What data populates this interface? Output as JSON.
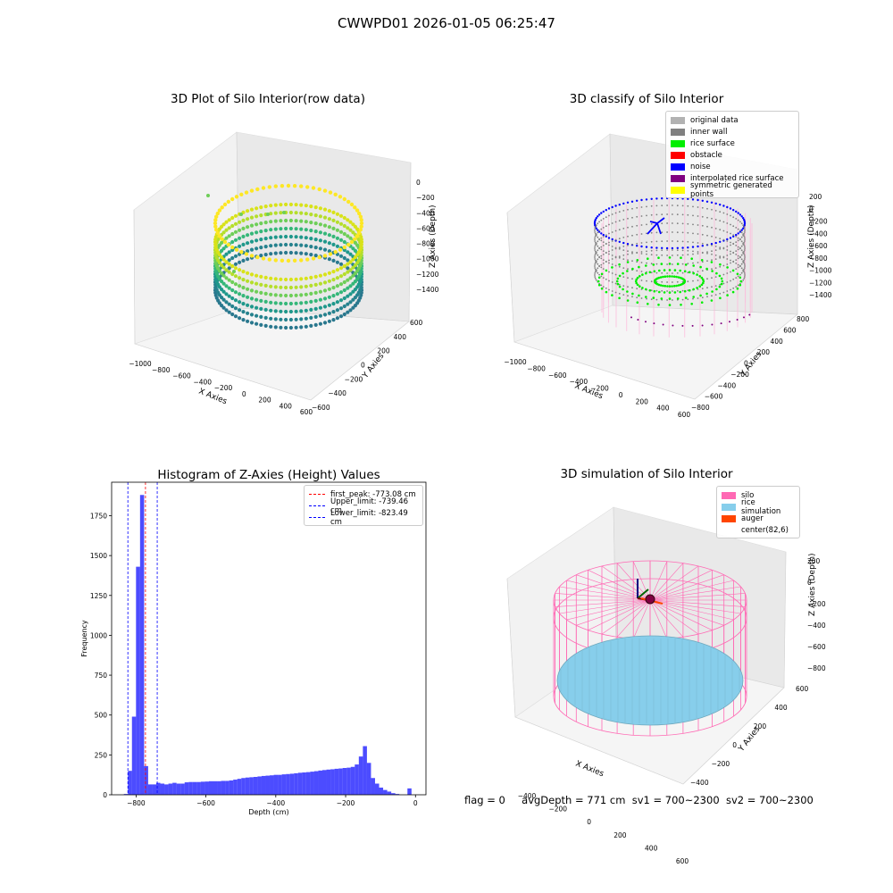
{
  "figure": {
    "suptitle": "CWWPD01 2026-01-05 06:25:47"
  },
  "colors": {
    "original_data": "#b2b2b2",
    "inner_wall": "#808080",
    "rice_surface": "#00ee00",
    "obstacle": "#ff0000",
    "noise": "#0000ff",
    "interpolated_rice_surface": "#800080",
    "symmetric_points": "#ffff00",
    "silo": "#ff69b4",
    "rice_simulation": "#87ceeb",
    "auger": "#ff4500",
    "hist_bar": "#0000ff",
    "first_peak_line": "#ff0000",
    "limit_line": "#0000ff"
  },
  "panels": {
    "raw3d": {
      "title": "3D Plot of Silo Interior(row data)",
      "xlabel": "X Axies",
      "ylabel": "Y Axies",
      "zlabel": "Z Axies (Depth)",
      "xticks": [
        "−1000",
        "−800",
        "−600",
        "−400",
        "−200",
        "0",
        "200",
        "400",
        "600"
      ],
      "yticks": [
        "−600",
        "−400",
        "−200",
        "0",
        "200",
        "400",
        "600"
      ],
      "zticks": [
        "0",
        "−200",
        "−400",
        "−600",
        "−800",
        "−1000",
        "−1200",
        "−1400"
      ]
    },
    "classify3d": {
      "title": "3D classify of Silo Interior",
      "xlabel": "X Axies",
      "ylabel": "Y Axies",
      "zlabel": "Z Axies (Depth)",
      "xticks": [
        "−1000",
        "−800",
        "−600",
        "−400",
        "−200",
        "0",
        "200",
        "400",
        "600"
      ],
      "yticks": [
        "−800",
        "−600",
        "−400",
        "−200",
        "0",
        "200",
        "400",
        "600",
        "800"
      ],
      "zticks": [
        "200",
        "0",
        "−200",
        "−400",
        "−600",
        "−800",
        "−1000",
        "−1200",
        "−1400"
      ],
      "legend": [
        "original data",
        "inner wall",
        "rice surface",
        "obstacle",
        "noise",
        "interpolated rice surface",
        "symmetric generated points"
      ]
    },
    "sim3d": {
      "title": "3D simulation of Silo Interior",
      "xlabel": "X Axies",
      "ylabel": "Y Axies",
      "zlabel": "Z Axies (Depth)",
      "xticks": [
        "−400",
        "−200",
        "0",
        "200",
        "400",
        "600"
      ],
      "yticks": [
        "−400",
        "−200",
        "0",
        "200",
        "400",
        "600"
      ],
      "zticks": [
        "200",
        "0",
        "−200",
        "−400",
        "−600",
        "−800"
      ],
      "legend": [
        "silo",
        "rice simulation",
        "auger",
        "center(82,6)"
      ]
    }
  },
  "status": {
    "flag": "flag = 0",
    "avg_depth": "avgDepth = 771 cm",
    "sv1": "sv1 = 700~2300",
    "sv2": "sv2 = 700~2300"
  },
  "chart_data": [
    {
      "type": "bar",
      "title": "Histogram of Z-Axies (Height) Values",
      "xlabel": "Depth (cm)",
      "ylabel": "Frequency",
      "xlim": [
        -870,
        30
      ],
      "ylim": [
        0,
        1960
      ],
      "xticks": [
        -800,
        -600,
        -400,
        -200,
        0
      ],
      "yticks": [
        0,
        250,
        500,
        750,
        1000,
        1250,
        1500,
        1750
      ],
      "bin_width": 11.6,
      "bin_edges_start": [
        -835,
        -823.4,
        -811.8,
        -800.2,
        -788.6,
        -777,
        -765.4,
        -753.8,
        -742.2,
        -730.6,
        -719,
        -707.4,
        -695.8,
        -684.2,
        -672.6,
        -661,
        -649.4,
        -637.8,
        -626.2,
        -614.6,
        -603,
        -591.4,
        -579.8,
        -568.2,
        -556.6,
        -545,
        -533.4,
        -521.8,
        -510.2,
        -498.6,
        -487,
        -475.4,
        -463.8,
        -452.2,
        -440.6,
        -429,
        -417.4,
        -405.8,
        -394.2,
        -382.6,
        -371,
        -359.4,
        -347.8,
        -336.2,
        -324.6,
        -313,
        -301.4,
        -289.8,
        -278.2,
        -266.6,
        -255,
        -243.4,
        -231.8,
        -220.2,
        -208.6,
        -197,
        -185.4,
        -173.8,
        -162.2,
        -150.6,
        -139,
        -127.4,
        -115.8,
        -104.2,
        -92.6,
        -81,
        -69.4,
        -57.8,
        -46.2,
        -34.6,
        -23,
        -11.4
      ],
      "counts": [
        5,
        150,
        490,
        1430,
        1880,
        180,
        65,
        65,
        75,
        70,
        65,
        70,
        75,
        70,
        70,
        78,
        80,
        80,
        80,
        82,
        83,
        85,
        85,
        85,
        87,
        87,
        90,
        95,
        100,
        105,
        108,
        110,
        112,
        115,
        118,
        120,
        122,
        125,
        125,
        128,
        130,
        132,
        135,
        138,
        140,
        142,
        145,
        148,
        152,
        155,
        158,
        160,
        163,
        165,
        168,
        170,
        175,
        190,
        240,
        305,
        200,
        105,
        70,
        45,
        30,
        20,
        10,
        5,
        0,
        0,
        40,
        0
      ],
      "lines": [
        {
          "name": "first_peak: -773.08 cm",
          "x": -773.08,
          "color": "#ff0000"
        },
        {
          "name": "Upper_limit: -739.46 cm",
          "x": -739.46,
          "color": "#0000ff"
        },
        {
          "name": "Lower_limit: -823.49 cm",
          "x": -823.49,
          "color": "#0000ff"
        }
      ]
    }
  ]
}
